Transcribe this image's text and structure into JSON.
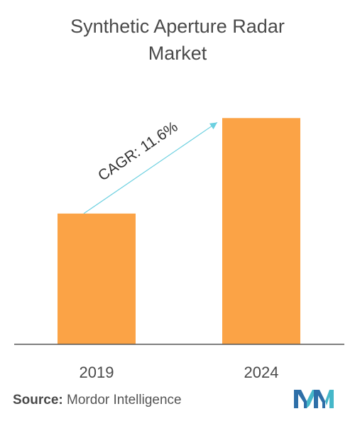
{
  "title_line1": "Synthetic Aperture Radar",
  "title_line2": "Market",
  "source_label": "Source:",
  "source_value": "Mordor Intelligence",
  "colors": {
    "bar": "#FBA346",
    "arrow": "#6CD0E0",
    "axis": "#555555",
    "text": "#4a4a4a"
  },
  "chart_data": {
    "type": "bar",
    "categories": [
      "2019",
      "2024"
    ],
    "values": [
      1.0,
      1.73
    ],
    "title": "Synthetic Aperture Radar Market",
    "xlabel": "",
    "ylabel": "",
    "ylim": [
      0,
      1.9
    ],
    "grid": false,
    "annotation": "CAGR: 11.6%"
  }
}
